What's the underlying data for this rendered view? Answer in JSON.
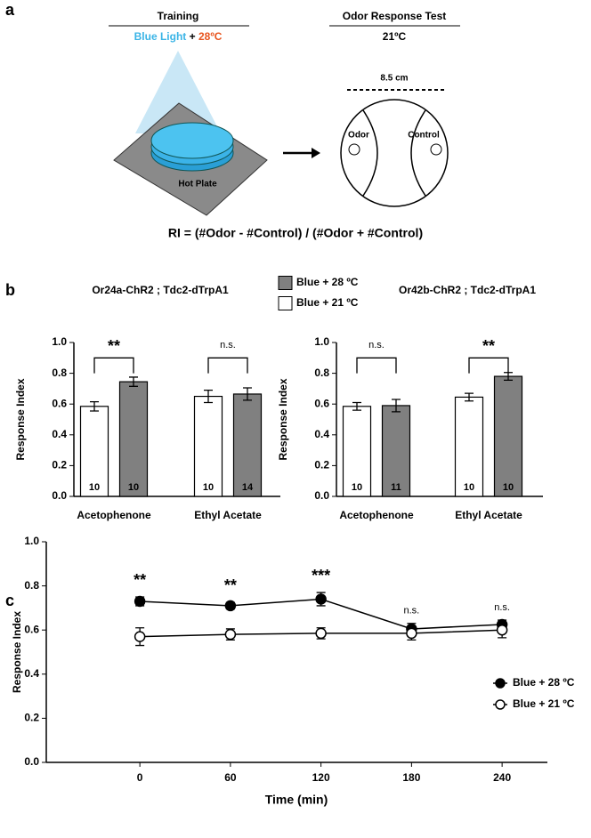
{
  "panel_labels": [
    "a",
    "b",
    "c"
  ],
  "training": {
    "title": "Training",
    "light": "Blue Light",
    "plus": "+",
    "temp": "28ºC"
  },
  "test": {
    "title": "Odor Response Test",
    "temp": "21ºC",
    "distance": "8.5 cm",
    "odor": "Odor",
    "control": "Control"
  },
  "hot_plate": "Hot Plate",
  "formula": "RI = (#Odor - #Control) / (#Odor + #Control)",
  "chart_data": [
    {
      "type": "bar",
      "title": "Or24a-ChR2 ; Tdc2-dTrpA1",
      "ylabel": "Response Index",
      "categories": [
        "Acetophenone",
        "Ethyl Acetate"
      ],
      "series": [
        {
          "name": "Blue + 21 ºC",
          "color": "#ffffff",
          "values": [
            0.585,
            0.65
          ],
          "errors": [
            0.03,
            0.04
          ],
          "n": [
            10,
            10
          ]
        },
        {
          "name": "Blue + 28 ºC",
          "color": "#808080",
          "values": [
            0.745,
            0.665
          ],
          "errors": [
            0.03,
            0.04
          ],
          "n": [
            10,
            14
          ]
        }
      ],
      "significance": [
        "**",
        "n.s."
      ],
      "ylim": [
        0,
        1
      ],
      "yticks": [
        {
          "value": 0,
          "label": "0.0"
        },
        0.2,
        0.4,
        0.6,
        0.8,
        {
          "value": 1,
          "label": "1.0"
        }
      ]
    },
    {
      "type": "bar",
      "title": "Or42b-ChR2 ; Tdc2-dTrpA1",
      "ylabel": "Response Index",
      "categories": [
        "Acetophenone",
        "Ethyl Acetate"
      ],
      "series": [
        {
          "color": "#ffffff",
          "values": [
            0.585,
            0.645
          ],
          "errors": [
            0.025,
            0.025
          ],
          "n": [
            10,
            10
          ]
        },
        {
          "color": "#808080",
          "values": [
            0.59,
            0.78
          ],
          "errors": [
            0.04,
            0.025
          ],
          "n": [
            11,
            10
          ]
        }
      ],
      "significance": [
        "n.s.",
        "**"
      ],
      "ylim": [
        0,
        1
      ],
      "yticks": [
        {
          "value": 0,
          "label": "0.0"
        },
        0.2,
        0.4,
        0.6,
        0.8,
        {
          "value": 1,
          "label": "1.0"
        }
      ]
    },
    {
      "type": "line",
      "xlabel": "Time (min)",
      "ylabel": "Response Index",
      "x": [
        0,
        60,
        120,
        180,
        240
      ],
      "series": [
        {
          "name": "Blue + 28 ºC",
          "color": "#000000",
          "marker_fill": "#000000",
          "values": [
            0.73,
            0.71,
            0.74,
            0.605,
            0.625
          ],
          "errors": [
            0.02,
            0.015,
            0.03,
            0.025,
            0.02
          ]
        },
        {
          "name": "Blue + 21 ºC",
          "color": "#000000",
          "marker_fill": "#ffffff",
          "values": [
            0.57,
            0.58,
            0.585,
            0.585,
            0.6
          ],
          "errors": [
            0.04,
            0.025,
            0.025,
            0.03,
            0.035
          ]
        }
      ],
      "annotations": [
        "**",
        "**",
        "***",
        "n.s.",
        "n.s."
      ],
      "legend": "lower right",
      "xlim": [
        -62,
        270
      ],
      "xticks": [
        0,
        60,
        120,
        180,
        240
      ],
      "ylim": [
        0,
        1
      ],
      "yticks": [
        {
          "value": 0,
          "label": "0.0"
        },
        0.2,
        0.4,
        0.6,
        0.8,
        {
          "value": 1,
          "label": "1.0"
        }
      ]
    }
  ]
}
